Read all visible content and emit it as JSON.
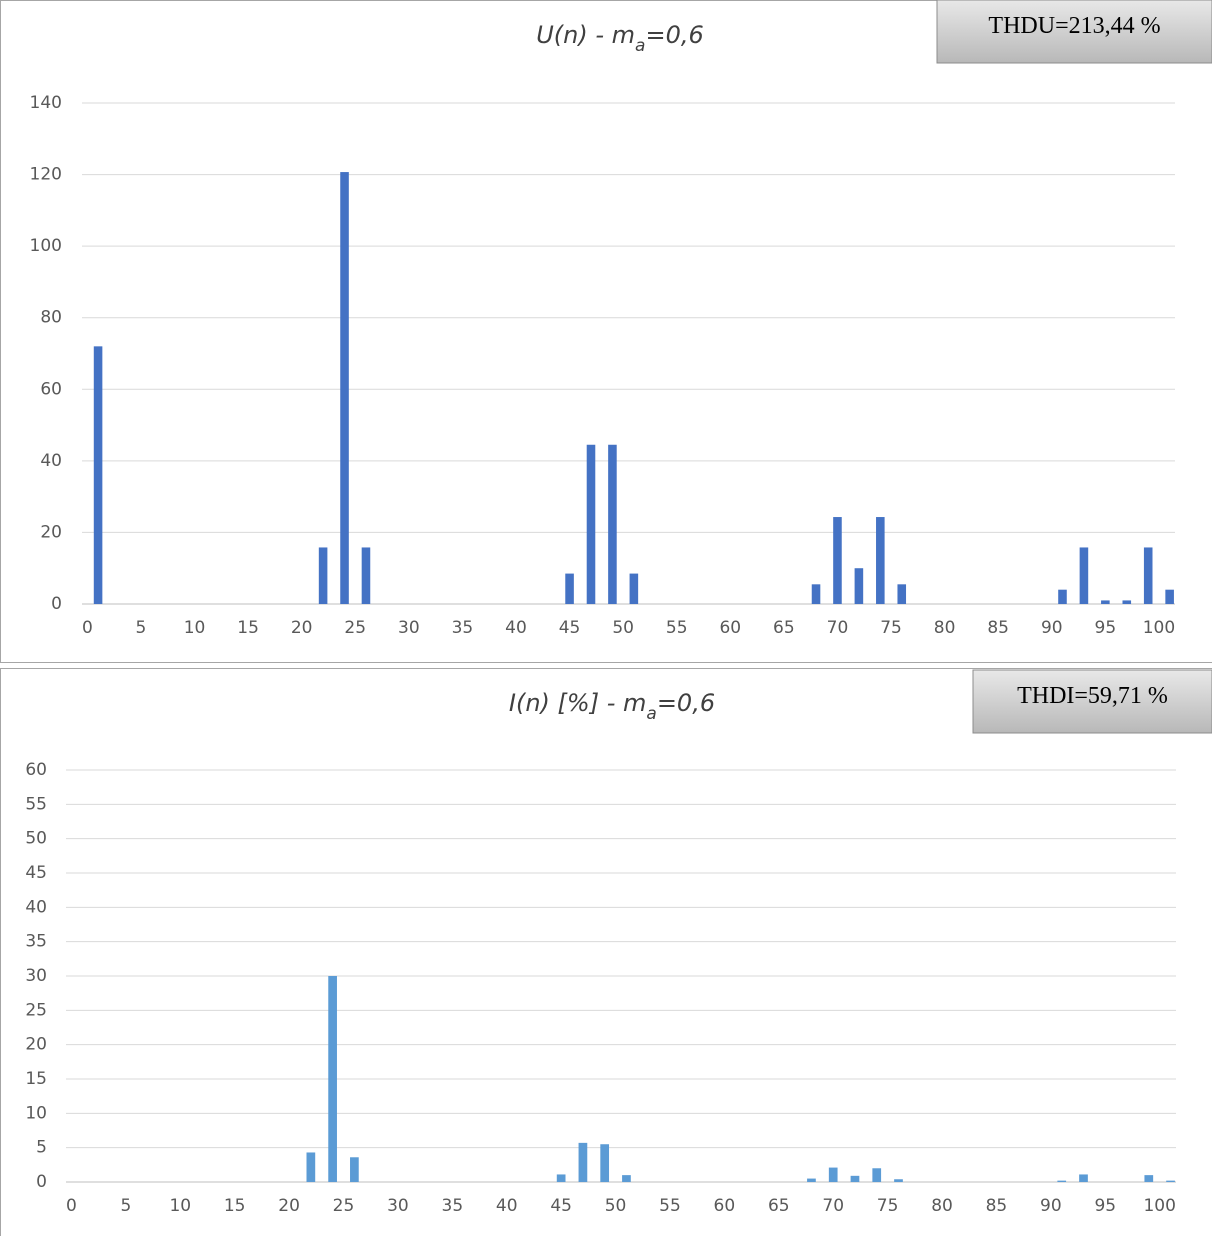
{
  "chart_data": [
    {
      "type": "bar",
      "title": [
        "U(n) - m",
        "a",
        "=0,6"
      ],
      "annotation": "THDU=213,44 %",
      "color": "#4472c4",
      "grid": true,
      "ylim": [
        0,
        140
      ],
      "yticks": [
        0,
        20,
        40,
        60,
        80,
        100,
        120,
        140
      ],
      "categories": [
        0,
        null,
        null,
        null,
        null,
        5,
        null,
        null,
        null,
        null,
        10,
        null,
        null,
        null,
        null,
        15,
        null,
        null,
        null,
        null,
        20,
        null,
        null,
        null,
        null,
        25,
        null,
        null,
        null,
        null,
        30,
        null,
        null,
        null,
        null,
        35,
        null,
        null,
        null,
        null,
        40,
        null,
        null,
        null,
        null,
        45,
        null,
        null,
        null,
        null,
        50,
        null,
        null,
        null,
        null,
        55,
        null,
        null,
        null,
        null,
        60,
        null,
        null,
        null,
        null,
        65,
        null,
        null,
        null,
        null,
        70,
        null,
        null,
        null,
        null,
        75,
        null,
        null,
        null,
        null,
        80,
        null,
        null,
        null,
        null,
        85,
        null,
        null,
        null,
        null,
        90,
        null,
        null,
        null,
        null,
        95,
        null,
        null,
        null,
        null,
        100,
        null
      ],
      "values": [
        0,
        72,
        0,
        0,
        0,
        0,
        0,
        0,
        0,
        0,
        0,
        0,
        0,
        0,
        0,
        0,
        0,
        0,
        0,
        0,
        0,
        0,
        15.8,
        0,
        120.7,
        0,
        15.8,
        0,
        0,
        0,
        0,
        0,
        0,
        0,
        0,
        0,
        0,
        0,
        0,
        0,
        0,
        0,
        0,
        0,
        0,
        8.5,
        0,
        44.5,
        0,
        44.5,
        0,
        8.5,
        0,
        0,
        0,
        0,
        0,
        0,
        0,
        0,
        0,
        0,
        0,
        0,
        0,
        0,
        0,
        0,
        5.5,
        0,
        24.3,
        0,
        10,
        0,
        24.3,
        0,
        5.5,
        0,
        0,
        0,
        0,
        0,
        0,
        0,
        0,
        0,
        0,
        0,
        0,
        0,
        0,
        4,
        0,
        15.8,
        0,
        1,
        0,
        1,
        0,
        15.8,
        0,
        4
      ]
    },
    {
      "type": "bar",
      "title": [
        "I(n) [%] - m",
        "a",
        "=0,6"
      ],
      "annotation": "THDI=59,71 %",
      "color": "#5b9bd5",
      "grid": true,
      "ylim": [
        0,
        60
      ],
      "yticks": [
        0,
        5,
        10,
        15,
        20,
        25,
        30,
        35,
        40,
        45,
        50,
        55,
        60
      ],
      "categories": [
        0,
        null,
        null,
        null,
        null,
        5,
        null,
        null,
        null,
        null,
        10,
        null,
        null,
        null,
        null,
        15,
        null,
        null,
        null,
        null,
        20,
        null,
        null,
        null,
        null,
        25,
        null,
        null,
        null,
        null,
        30,
        null,
        null,
        null,
        null,
        35,
        null,
        null,
        null,
        null,
        40,
        null,
        null,
        null,
        null,
        45,
        null,
        null,
        null,
        null,
        50,
        null,
        null,
        null,
        null,
        55,
        null,
        null,
        null,
        null,
        60,
        null,
        null,
        null,
        null,
        65,
        null,
        null,
        null,
        null,
        70,
        null,
        null,
        null,
        null,
        75,
        null,
        null,
        null,
        null,
        80,
        null,
        null,
        null,
        null,
        85,
        null,
        null,
        null,
        null,
        90,
        null,
        null,
        null,
        null,
        95,
        null,
        null,
        null,
        null,
        100,
        null
      ],
      "values": [
        0,
        0,
        0,
        0,
        0,
        0,
        0,
        0,
        0,
        0,
        0,
        0,
        0,
        0,
        0,
        0,
        0,
        0,
        0,
        0,
        0,
        0,
        4.3,
        0,
        30,
        0,
        3.6,
        0,
        0,
        0,
        0,
        0,
        0,
        0,
        0,
        0,
        0,
        0,
        0,
        0,
        0,
        0,
        0,
        0,
        0,
        1.1,
        0,
        5.7,
        0,
        5.5,
        0,
        1,
        0,
        0,
        0,
        0,
        0,
        0,
        0,
        0,
        0,
        0,
        0,
        0,
        0,
        0,
        0,
        0,
        0.5,
        0,
        2.1,
        0,
        0.9,
        0,
        2,
        0,
        0.4,
        0,
        0,
        0,
        0,
        0,
        0,
        0,
        0,
        0,
        0,
        0,
        0,
        0,
        0,
        0.2,
        0,
        1.1,
        0,
        0,
        0,
        0,
        0,
        1,
        0,
        0.2
      ]
    }
  ]
}
